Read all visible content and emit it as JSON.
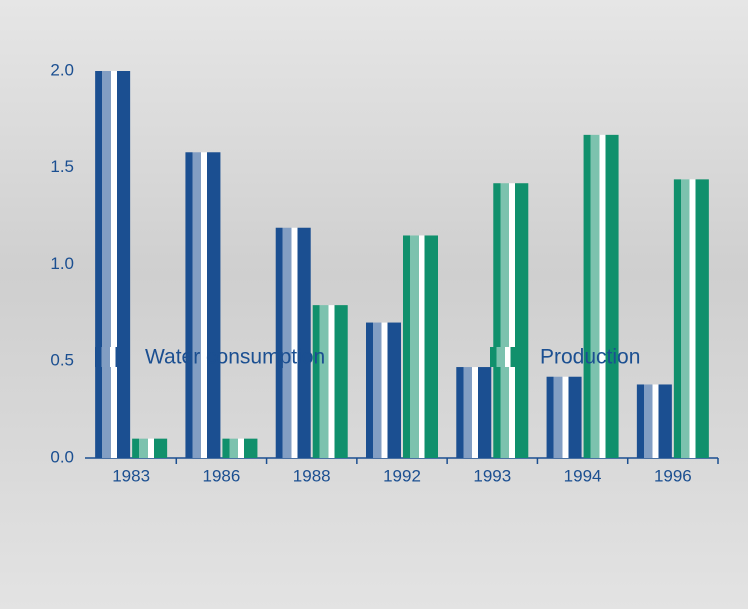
{
  "chart_data": {
    "type": "bar",
    "categories": [
      "1983",
      "1986",
      "1988",
      "1992",
      "1993",
      "1994",
      "1996"
    ],
    "series": [
      {
        "name": "Water consumption",
        "color": "#1b4f91",
        "values": [
          2.0,
          1.58,
          1.19,
          0.7,
          0.47,
          0.42,
          0.38
        ]
      },
      {
        "name": "Production",
        "color": "#10906c",
        "values": [
          0.1,
          0.1,
          0.79,
          1.15,
          1.42,
          1.67,
          1.44
        ]
      }
    ],
    "ylim": [
      0,
      2.0
    ],
    "yticks": [
      {
        "value": 0,
        "label": "0.0"
      },
      0.5,
      {
        "value": 1,
        "label": "1.0"
      },
      1.5,
      {
        "value": 2,
        "label": "2.0"
      }
    ]
  }
}
